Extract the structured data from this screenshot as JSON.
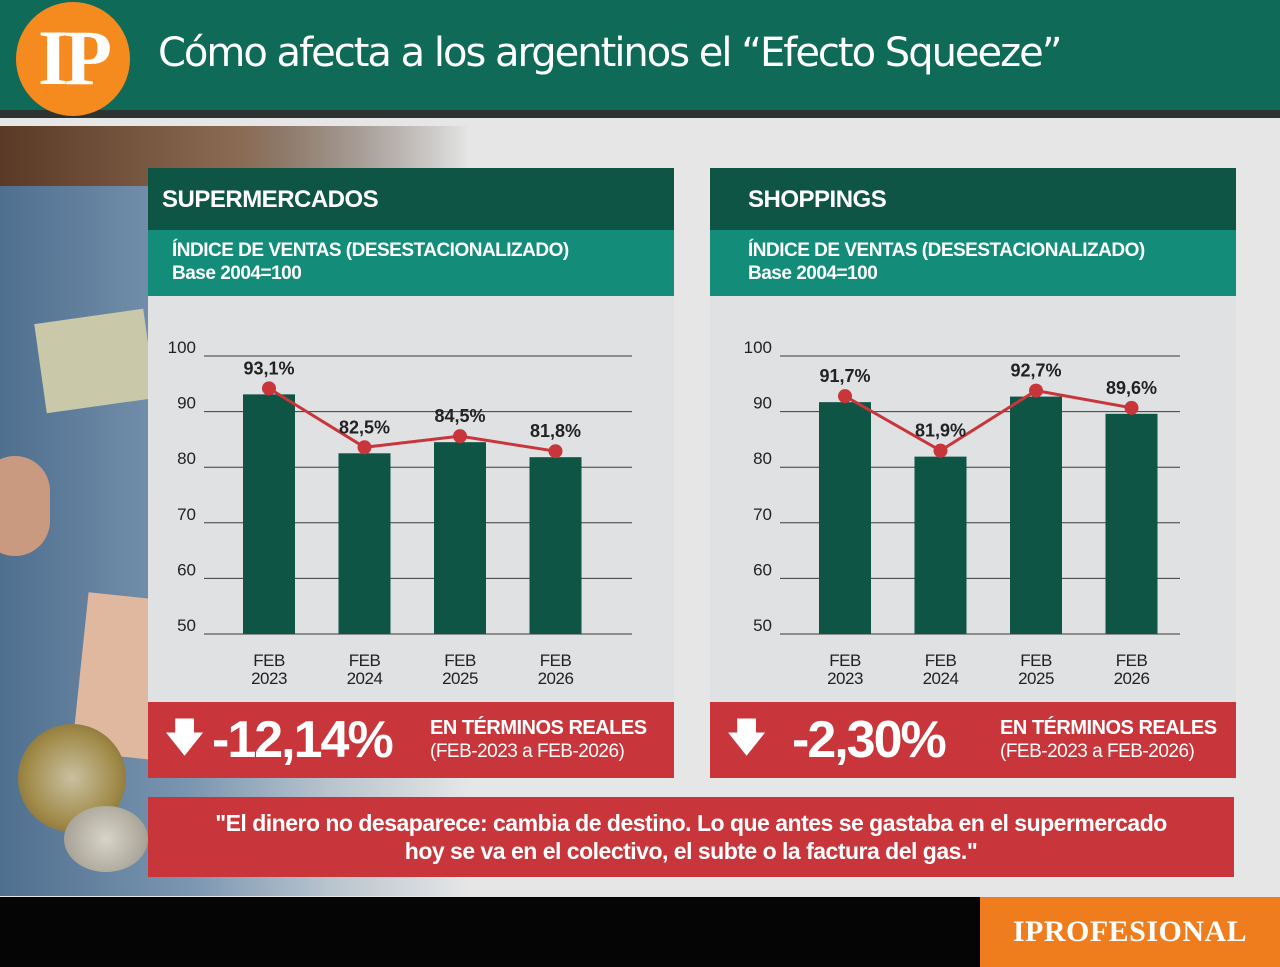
{
  "header": {
    "logo": "IP",
    "title": "Cómo afecta a los argentinos el “Efecto Squeeze”"
  },
  "footer": {
    "brand": "IPROFESIONAL"
  },
  "panels": [
    {
      "title": "SUPERMERCADOS",
      "subtitle": "ÍNDICE DE VENTAS (DESESTACIONALIZADO)",
      "base": "Base 2004=100",
      "result": {
        "value": "-12,14%",
        "label": "EN TÉRMINOS REALES",
        "period": "(FEB-2023 a FEB-2026)"
      }
    },
    {
      "title": "SHOPPINGS",
      "subtitle": "ÍNDICE DE VENTAS (DESESTACIONALIZADO)",
      "base": "Base 2004=100",
      "result": {
        "value": "-2,30%",
        "label": "EN TÉRMINOS REALES",
        "period": "(FEB-2023 a FEB-2026)"
      }
    }
  ],
  "quote": {
    "line1": "\"El dinero no desaparece: cambia de destino. Lo que antes se gastaba en el supermercado",
    "line2": "hoy se va en el colectivo, el subte o la factura del gas.\""
  },
  "colors": {
    "bar": "#0f5546",
    "line": "#c8353b",
    "header": "#0f6a58",
    "accent": "#f58a1f"
  },
  "chart_data": [
    {
      "type": "bar",
      "title": "SUPERMERCADOS",
      "categories": [
        "FEB 2023",
        "FEB 2024",
        "FEB 2025",
        "FEB 2026"
      ],
      "category_lines": [
        [
          "FEB",
          "2023"
        ],
        [
          "FEB",
          "2024"
        ],
        [
          "FEB",
          "2025"
        ],
        [
          "FEB",
          "2026"
        ]
      ],
      "values": [
        93.1,
        82.5,
        84.5,
        81.8
      ],
      "data_labels": [
        "93,1%",
        "82,5%",
        "84,5%",
        "81,8%"
      ],
      "line_overlay": true,
      "ylim": [
        50,
        100
      ],
      "yticks": [
        50,
        60,
        70,
        80,
        90,
        100
      ],
      "grid": true
    },
    {
      "type": "bar",
      "title": "SHOPPINGS",
      "categories": [
        "FEB 2023",
        "FEB 2024",
        "FEB 2025",
        "FEB 2026"
      ],
      "category_lines": [
        [
          "FEB",
          "2023"
        ],
        [
          "FEB",
          "2024"
        ],
        [
          "FEB",
          "2025"
        ],
        [
          "FEB",
          "2026"
        ]
      ],
      "values": [
        91.7,
        81.9,
        92.7,
        89.6
      ],
      "data_labels": [
        "91,7%",
        "81,9%",
        "92,7%",
        "89,6%"
      ],
      "line_overlay": true,
      "ylim": [
        50,
        100
      ],
      "yticks": [
        50,
        60,
        70,
        80,
        90,
        100
      ],
      "grid": true
    }
  ]
}
